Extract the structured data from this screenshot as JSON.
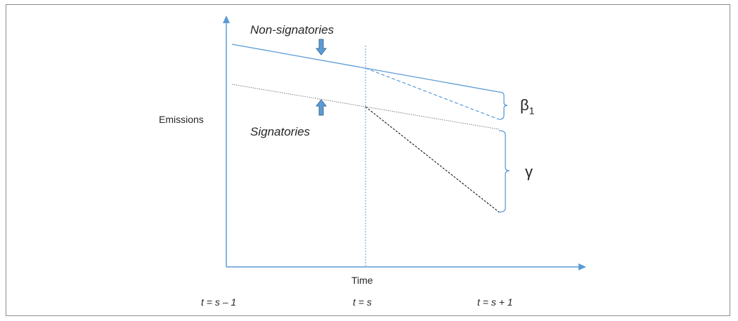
{
  "labels": {
    "ylabel": "Emissions",
    "xlabel": "Time",
    "non_signatories": "Non-signatories",
    "signatories": "Signatories",
    "beta": "β",
    "beta_sub": "1",
    "gamma": "γ"
  },
  "ticks": [
    "t = s – 1",
    "t = s",
    "t = s + 1"
  ],
  "colors": {
    "axis": "#5b9bd5",
    "non_signatories_line": "#5b9bd5",
    "signatories_line": "#7f7f7f",
    "counterfactual_signatories": "#000000",
    "arrow_fill": "#5b9bd5",
    "arrow_stroke": "#41719c",
    "bracket": "#5b9bd5"
  },
  "icons": {
    "down_arrow": "arrow-down-icon",
    "up_arrow": "arrow-up-icon"
  }
}
